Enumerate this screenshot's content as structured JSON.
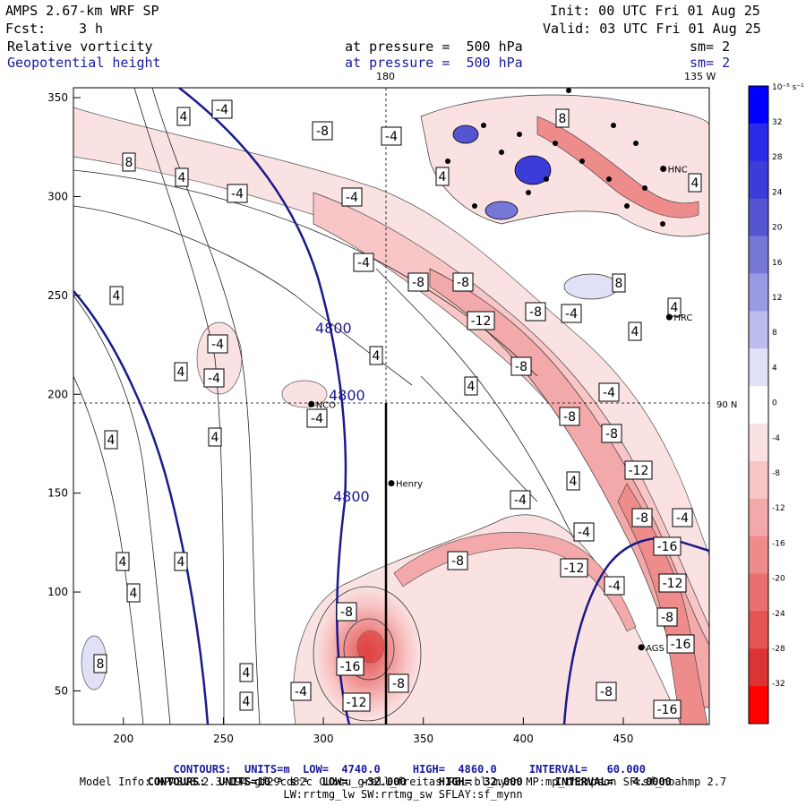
{
  "header": {
    "model": "AMPS 2.67-km WRF SP",
    "init": "Init: 00 UTC Fri 01 Aug 25",
    "fcst_label": "Fcst:",
    "fcst_value": "3 h",
    "valid": "Valid: 03 UTC Fri 01 Aug 25",
    "field1": "Relative vorticity",
    "field1_level": "at pressure =  500 hPa",
    "field1_sm": "sm= 2",
    "field2": "Geopotential height",
    "field2_level": "at pressure =  500 hPa",
    "field2_sm": "sm= 2"
  },
  "map_labels": {
    "lon_180": "180",
    "lon_135w": "135 W",
    "lat_90n": "90 N",
    "stations": [
      "NCO",
      "Henry",
      "HNC",
      "HRC",
      "AGS"
    ]
  },
  "colorbar": {
    "unit": "10⁻⁵ s⁻¹",
    "ticks": [
      "32",
      "28",
      "24",
      "20",
      "16",
      "12",
      "8",
      "4",
      "0",
      "-4",
      "-8",
      "-12",
      "-16",
      "-20",
      "-24",
      "-28",
      "-32"
    ],
    "colors": [
      "#0000ff",
      "#2a2ae8",
      "#3c3cd8",
      "#5555d2",
      "#7777d8",
      "#9a9ae4",
      "#bcbcee",
      "#e0e0f6",
      "#ffffff",
      "#fbe2e2",
      "#f8c6c6",
      "#f3a9a9",
      "#ee8c8c",
      "#ea7070",
      "#e45454",
      "#dc3434",
      "#ff0000"
    ]
  },
  "chart_data": {
    "type": "contour map",
    "xlim": [
      175,
      493
    ],
    "ylim": [
      33,
      355
    ],
    "x_ticks": [
      200,
      250,
      300,
      350,
      400,
      450
    ],
    "y_ticks": [
      50,
      100,
      150,
      200,
      250,
      300,
      350
    ],
    "height_contour_label": "4800",
    "vorticity_labels": [
      "-4",
      "-8",
      "-12",
      "-16",
      "4",
      "8"
    ],
    "stations": [
      {
        "name": "NCO",
        "x": 294,
        "y": 195
      },
      {
        "name": "Henry",
        "x": 334,
        "y": 155
      },
      {
        "name": "HNC",
        "x": 470,
        "y": 314
      },
      {
        "name": "HRC",
        "x": 473,
        "y": 239
      },
      {
        "name": "AGS",
        "x": 459,
        "y": 72
      }
    ]
  },
  "footer": {
    "line1_label": "CONTOURS:",
    "line1_units": "UNITS=m",
    "line1_low": "LOW=  4740.0",
    "line1_high": "HIGH=  4860.0",
    "line1_interval": "INTERVAL=   60.000",
    "line2_label": "CONTOURS:",
    "line2_units": "UNITS=10⁻⁵ s⁻¹",
    "line2_low": "LOW=  -32.000",
    "line2_high": "HIGH=  32.000",
    "line2_interval": "INTERVAL=   4.0000",
    "line3": "Model Info: MPASv8.2.3-194-gf29cd82c CU:cu_grell_freitas PBL:bl_mynn MP:mp_thompson SF:sf_noahmp 2.7",
    "line4": "LW:rrtmg_lw SW:rrtmg_sw SFLAY:sf_mynn"
  }
}
